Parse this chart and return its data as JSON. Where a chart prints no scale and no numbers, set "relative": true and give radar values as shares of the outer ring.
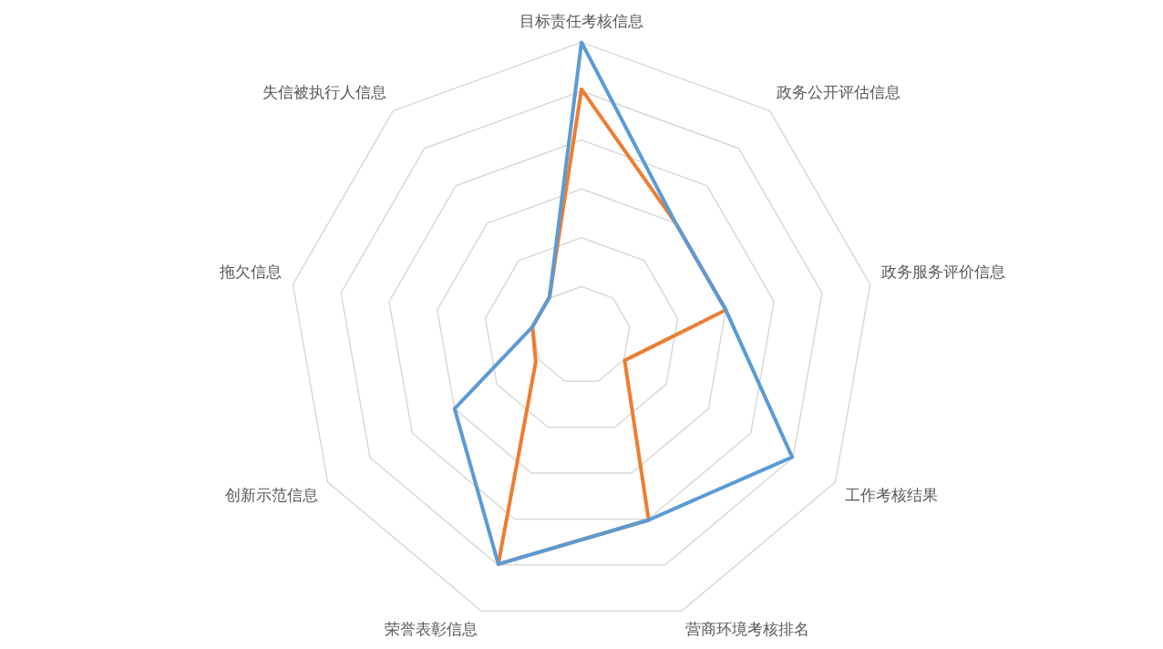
{
  "chart_data": {
    "type": "radar",
    "relative": true,
    "grid": true,
    "legend": false,
    "marker": "none",
    "line_style": "solid",
    "categories": [
      "目标责任考核信息",
      "政务公开评估信息",
      "政务服务评价信息",
      "工作考核结果",
      "营商环境考核排名",
      "荣誉表彰信息",
      "创新示范信息",
      "拖欠信息",
      "失信被执行人信息"
    ],
    "series": [
      {
        "color": "#5b9bd5",
        "values": [
          1,
          0.5,
          0.5,
          0.83,
          0.67,
          0.83,
          0.5,
          0.17,
          0.17
        ]
      },
      {
        "color": "#ed7d31",
        "values": [
          0.84,
          0.5,
          0.5,
          0.17,
          0.67,
          0.83,
          0.18,
          0.17,
          0.17
        ]
      }
    ]
  }
}
